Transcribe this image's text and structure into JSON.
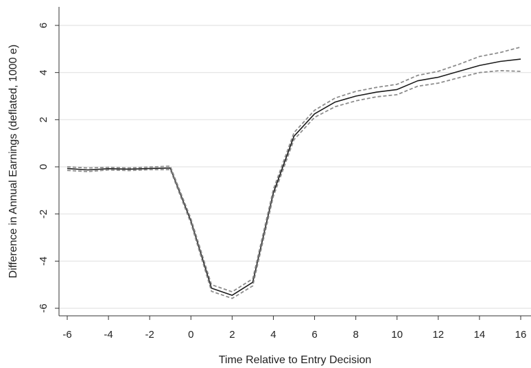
{
  "chart_data": {
    "type": "line",
    "xlabel": "Time Relative to Entry Decision",
    "ylabel": "Difference in Annual Earnings (deflated, 1000 e)",
    "xlim": [
      -6,
      16
    ],
    "ylim": [
      -6,
      6
    ],
    "xticks": [
      -6,
      -4,
      -2,
      0,
      2,
      4,
      6,
      8,
      10,
      12,
      14,
      16
    ],
    "yticks": [
      -6,
      -4,
      -2,
      0,
      2,
      4,
      6
    ],
    "grid": true,
    "x": [
      -6,
      -5,
      -4,
      -3,
      -2,
      -1,
      0,
      1,
      2,
      3,
      4,
      5,
      6,
      7,
      8,
      9,
      10,
      11,
      12,
      13,
      14,
      15,
      16
    ],
    "series": [
      {
        "style": "solid",
        "color": "#1a1a1a",
        "values": [
          -0.07,
          -0.13,
          -0.08,
          -0.1,
          -0.07,
          -0.05,
          -2.3,
          -5.15,
          -5.45,
          -4.9,
          -1.1,
          1.3,
          2.25,
          2.75,
          3.0,
          3.17,
          3.28,
          3.65,
          3.8,
          4.05,
          4.3,
          4.47,
          4.57
        ]
      },
      {
        "style": "dashed",
        "color": "#8c8c8c",
        "values": [
          0.0,
          -0.05,
          -0.02,
          -0.05,
          -0.01,
          0.03,
          -2.2,
          -5.0,
          -5.3,
          -4.75,
          -0.95,
          1.45,
          2.4,
          2.92,
          3.2,
          3.37,
          3.5,
          3.88,
          4.05,
          4.35,
          4.68,
          4.85,
          5.08
        ]
      },
      {
        "style": "dashed",
        "color": "#8c8c8c",
        "values": [
          -0.15,
          -0.2,
          -0.13,
          -0.16,
          -0.12,
          -0.12,
          -2.4,
          -5.28,
          -5.58,
          -5.05,
          -1.25,
          1.15,
          2.1,
          2.55,
          2.8,
          2.97,
          3.06,
          3.42,
          3.55,
          3.78,
          4.0,
          4.08,
          4.05
        ]
      }
    ]
  }
}
